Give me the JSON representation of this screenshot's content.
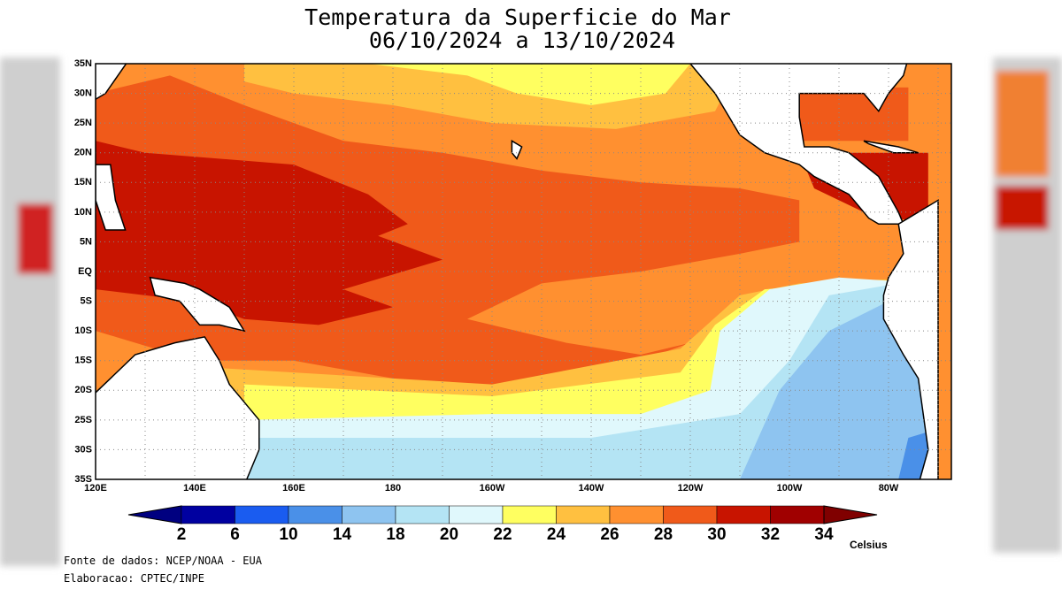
{
  "header": {
    "title": "Temperatura da Superficie do Mar",
    "subtitle": "06/10/2024 a 13/10/2024"
  },
  "map": {
    "lat_labels": [
      "35N",
      "30N",
      "25N",
      "20N",
      "15N",
      "10N",
      "5N",
      "EQ",
      "5S",
      "10S",
      "15S",
      "20S",
      "25S",
      "30S",
      "35S"
    ],
    "lon_labels": [
      "120E",
      "140E",
      "160E",
      "180",
      "160W",
      "140W",
      "120W",
      "100W",
      "80W"
    ]
  },
  "legend": {
    "ticks": [
      2,
      6,
      10,
      14,
      18,
      20,
      22,
      24,
      26,
      28,
      30,
      32,
      34
    ],
    "unit": "Celsius"
  },
  "footer": {
    "source": "Fonte de dados: NCEP/NOAA - EUA",
    "author": "Elaboracao: CPTEC/INPE"
  }
}
